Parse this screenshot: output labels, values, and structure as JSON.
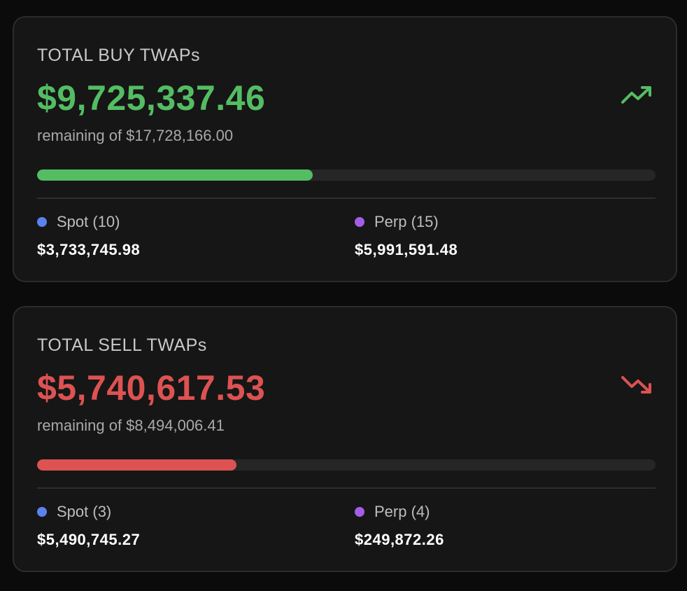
{
  "colors": {
    "background": "#0b0b0b",
    "card_bg": "#161616",
    "buy_green": "#54bd63",
    "sell_red": "#dd5252",
    "spot_blue": "#5b82ee",
    "perp_purple": "#a45ee6"
  },
  "buy": {
    "title": "TOTAL BUY TWAPs",
    "amount": "$9,725,337.46",
    "subtitle": "remaining of $17,728,166.00",
    "trend_icon": "trending-up-icon",
    "progress_fraction": 0.446,
    "spot": {
      "label": "Spot (10)",
      "value": "$3,733,745.98"
    },
    "perp": {
      "label": "Perp (15)",
      "value": "$5,991,591.48"
    }
  },
  "sell": {
    "title": "TOTAL SELL TWAPs",
    "amount": "$5,740,617.53",
    "subtitle": "remaining of $8,494,006.41",
    "trend_icon": "trending-down-icon",
    "progress_fraction": 0.322,
    "spot": {
      "label": "Spot (3)",
      "value": "$5,490,745.27"
    },
    "perp": {
      "label": "Perp (4)",
      "value": "$249,872.26"
    }
  }
}
